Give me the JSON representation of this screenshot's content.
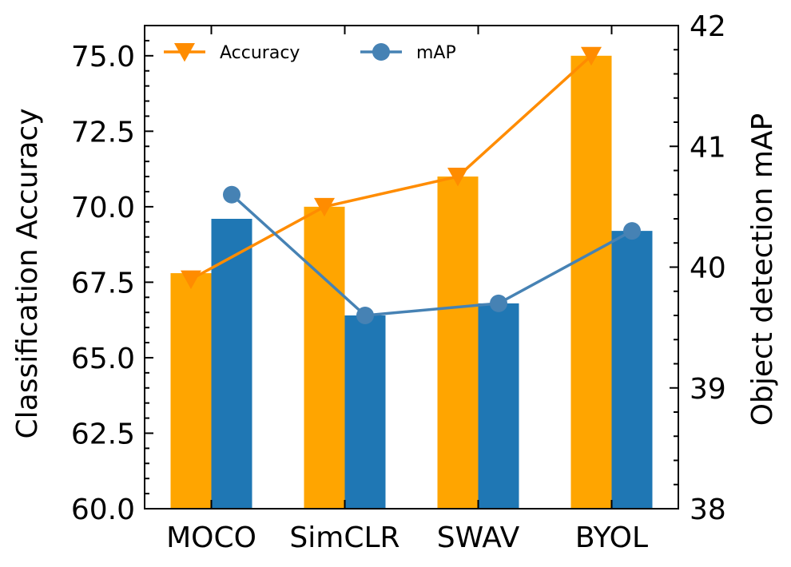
{
  "chart_data": {
    "type": "bar",
    "categories": [
      "MOCO",
      "SimCLR",
      "SWAV",
      "BYOL"
    ],
    "left_axis": {
      "label": "Classification Accuracy",
      "ylim": [
        60.0,
        76.0
      ],
      "ticks": [
        "60.0",
        "62.5",
        "65.0",
        "67.5",
        "70.0",
        "72.5",
        "75.0"
      ],
      "tick_values": [
        60.0,
        62.5,
        65.0,
        67.5,
        70.0,
        72.5,
        75.0
      ]
    },
    "right_axis": {
      "label": "Object detection mAP",
      "ylim": [
        38,
        42
      ],
      "ticks": [
        "38",
        "39",
        "40",
        "41",
        "42"
      ],
      "tick_values": [
        38,
        39,
        40,
        41,
        42
      ]
    },
    "bar_series": [
      {
        "name": "Accuracy",
        "axis": "left",
        "color": "#FFA500",
        "values": [
          67.8,
          70.0,
          71.0,
          75.0
        ]
      },
      {
        "name": "mAP",
        "axis": "right",
        "color": "#1F77B4",
        "values": [
          40.4,
          39.6,
          39.7,
          40.3
        ]
      }
    ],
    "line_series": [
      {
        "name": "Accuracy",
        "axis": "left",
        "color": "#FF8C00",
        "marker": "triangle-down",
        "values": [
          67.6,
          70.0,
          71.0,
          75.0
        ]
      },
      {
        "name": "mAP",
        "axis": "right",
        "color": "#4682B4",
        "marker": "circle",
        "values": [
          40.6,
          39.6,
          39.7,
          40.3
        ]
      }
    ],
    "legend": {
      "position": "top-left",
      "items": [
        {
          "label": "Accuracy",
          "color": "#FF8C00",
          "marker": "triangle-down"
        },
        {
          "label": "mAP",
          "color": "#4682B4",
          "marker": "circle"
        }
      ]
    },
    "grid": false
  }
}
